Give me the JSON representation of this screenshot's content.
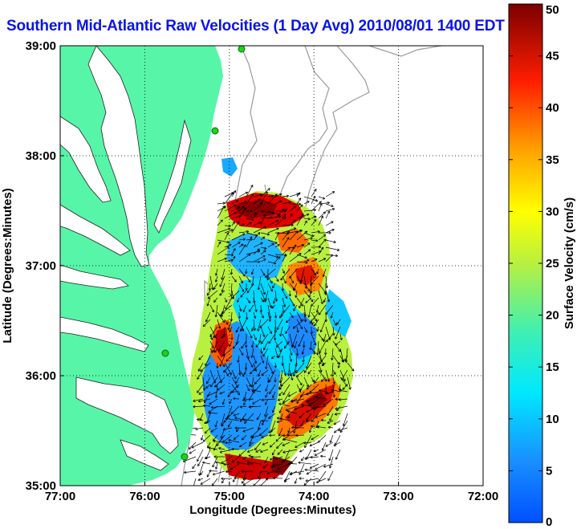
{
  "title": "Southern Mid-Atlantic Raw Velocities (1 Day Avg) 2010/08/01 1400 EDT",
  "map": {
    "x_label": "Longitude (Degrees:Minutes)",
    "y_label": "Latitude (Degrees:Minutes)",
    "x_ticks": [
      "77:00",
      "76:00",
      "75:00",
      "74:00",
      "73:00",
      "72:00"
    ],
    "y_ticks": [
      "39:00",
      "38:00",
      "37:00",
      "36:00",
      "35:00"
    ],
    "lon_range": [
      -77,
      -72
    ],
    "lat_range": [
      35,
      39
    ],
    "grid": "dotted",
    "land_color": "#57f5a8",
    "bathymetry_color": "#9a9a9a",
    "station_color": "#1fd11f"
  },
  "colorbar": {
    "label": "Surface Velocity (cm/s)",
    "ticks": [
      "50",
      "45",
      "40",
      "35",
      "30",
      "25",
      "20",
      "15",
      "10",
      "5",
      "0"
    ],
    "range": [
      0,
      50
    ]
  }
}
